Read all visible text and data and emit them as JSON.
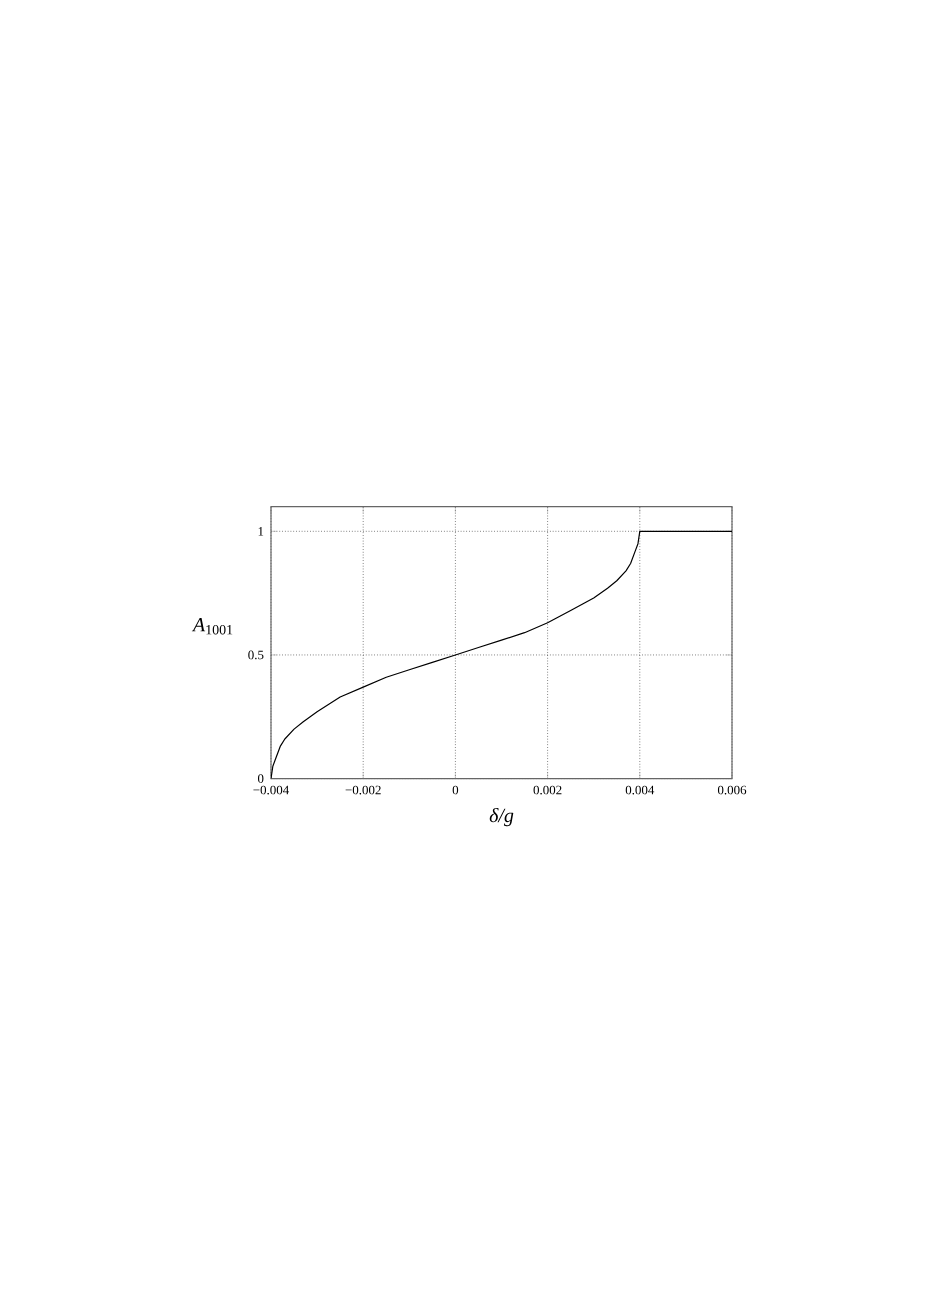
{
  "chart_data": {
    "type": "line",
    "xlabel": "δ/g",
    "ylabel": "*A*$_{1001}$",
    "x": [
      -0.004,
      -0.00396,
      -0.0039,
      -0.0038,
      -0.0037,
      -0.0035,
      -0.0033,
      -0.003,
      -0.0025,
      -0.002,
      -0.0015,
      -0.001,
      -0.0005,
      0,
      0.0005,
      0.001,
      0.0015,
      0.002,
      0.0025,
      0.003,
      0.0033,
      0.0035,
      0.0037,
      0.0038,
      0.0039,
      0.00396,
      0.004,
      0.006
    ],
    "values": [
      0,
      0.05,
      0.08,
      0.13,
      0.16,
      0.2,
      0.23,
      0.27,
      0.33,
      0.37,
      0.41,
      0.44,
      0.47,
      0.5,
      0.53,
      0.56,
      0.59,
      0.63,
      0.68,
      0.73,
      0.77,
      0.8,
      0.84,
      0.87,
      0.92,
      0.95,
      1,
      1
    ],
    "color": "#000000",
    "xlim": [
      -0.004,
      0.006
    ],
    "ylim": [
      0,
      1.1
    ],
    "xticks": [
      {
        "value": -0.004,
        "label": "−0.004"
      },
      {
        "value": -0.002,
        "label": "−0.002"
      },
      0,
      0.002,
      0.004,
      0.006
    ],
    "yticks": [
      0,
      0.5,
      1
    ],
    "grid": true
  }
}
